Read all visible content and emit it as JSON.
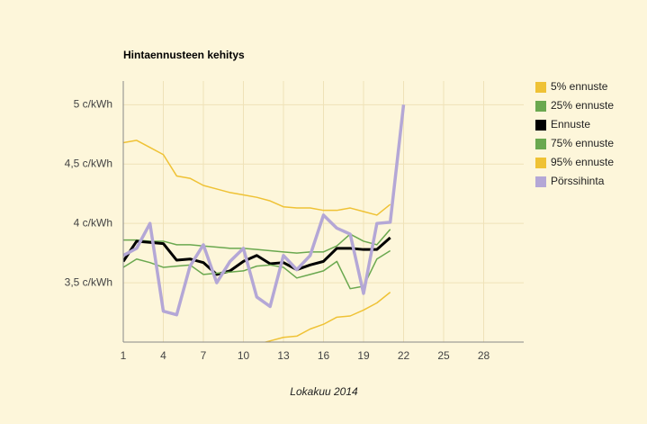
{
  "chart_data": {
    "type": "line",
    "title": "Hintaennusteen kehitys",
    "xlabel": "Lokakuu 2014",
    "x": [
      1,
      2,
      3,
      4,
      5,
      6,
      7,
      8,
      9,
      10,
      11,
      12,
      13,
      14,
      15,
      16,
      17,
      18,
      19,
      20,
      21,
      22
    ],
    "xlim": [
      1,
      31
    ],
    "xticks": [
      1,
      4,
      7,
      10,
      13,
      16,
      19,
      22,
      25,
      28
    ],
    "ylim": [
      3,
      5.2
    ],
    "yticks": [
      {
        "value": 3.5,
        "label": "3,5 c/kWh"
      },
      {
        "value": 4,
        "label": "4 c/kWh"
      },
      {
        "value": 4.5,
        "label": "4,5 c/kWh"
      },
      {
        "value": 5,
        "label": "5 c/kWh"
      }
    ],
    "grid": true,
    "legend": "right",
    "series": [
      {
        "name": "5% ennuste",
        "color": "#efc235",
        "width": 1.5,
        "values": [
          4.68,
          4.7,
          4.64,
          4.58,
          4.4,
          4.38,
          4.32,
          4.29,
          4.26,
          4.24,
          4.22,
          4.19,
          4.14,
          4.13,
          4.13,
          4.11,
          4.11,
          4.13,
          4.1,
          4.07,
          4.16,
          null
        ]
      },
      {
        "name": "25% ennuste",
        "color": "#6aa84f",
        "width": 1.5,
        "values": [
          3.86,
          3.86,
          3.85,
          3.85,
          3.82,
          3.82,
          3.81,
          3.8,
          3.79,
          3.79,
          3.78,
          3.77,
          3.76,
          3.75,
          3.76,
          3.76,
          3.81,
          3.91,
          3.85,
          3.82,
          3.95,
          null
        ]
      },
      {
        "name": "Ennuste",
        "color": "#000000",
        "width": 3,
        "values": [
          3.68,
          3.85,
          3.84,
          3.83,
          3.69,
          3.7,
          3.67,
          3.57,
          3.6,
          3.68,
          3.73,
          3.66,
          3.67,
          3.61,
          3.65,
          3.68,
          3.79,
          3.79,
          3.78,
          3.78,
          3.88,
          null
        ]
      },
      {
        "name": "75% ennuste",
        "color": "#6aa84f",
        "width": 1.5,
        "values": [
          3.63,
          3.7,
          3.67,
          3.63,
          3.64,
          3.65,
          3.57,
          3.58,
          3.59,
          3.6,
          3.64,
          3.65,
          3.63,
          3.54,
          3.57,
          3.6,
          3.68,
          3.45,
          3.47,
          3.7,
          3.77,
          null
        ]
      },
      {
        "name": "95% ennuste",
        "color": "#efc235",
        "width": 1.5,
        "values": [
          null,
          null,
          null,
          null,
          null,
          null,
          null,
          null,
          null,
          null,
          2.98,
          3.01,
          3.04,
          3.05,
          3.11,
          3.15,
          3.21,
          3.22,
          3.27,
          3.33,
          3.42,
          null
        ]
      },
      {
        "name": "Pörssihinta",
        "color": "#b4a7d6",
        "width": 3.5,
        "values": [
          3.73,
          3.79,
          4.0,
          3.26,
          3.23,
          3.64,
          3.82,
          3.5,
          3.68,
          3.79,
          3.38,
          3.3,
          3.73,
          3.61,
          3.73,
          4.07,
          3.96,
          3.91,
          3.41,
          4.0,
          4.01,
          5.0
        ]
      }
    ]
  }
}
